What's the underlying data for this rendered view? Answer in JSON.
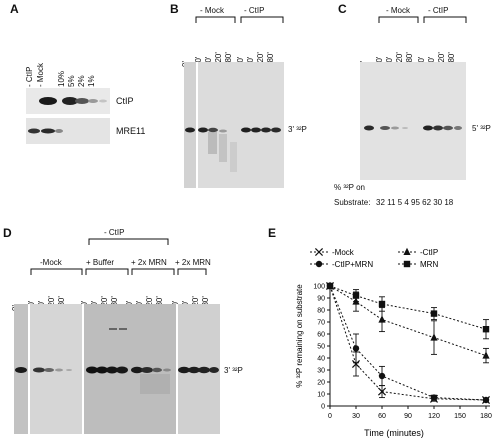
{
  "panels": {
    "A": {
      "label": "A",
      "lanes": [
        "- CtIP",
        "- Mock",
        "10%",
        "5%",
        "2%",
        "1%"
      ],
      "band_labels": [
        "CtIP",
        "MRE11"
      ]
    },
    "B": {
      "label": "B",
      "groups": [
        "- Mock",
        "- CtIP"
      ],
      "lanes": [
        "0'",
        "30'",
        "60'",
        "120'",
        "180'",
        "30'",
        "60'",
        "120'",
        "180'"
      ],
      "band_label": "3' ³²P"
    },
    "C": {
      "label": "C",
      "groups": [
        "- Mock",
        "- CtIP"
      ],
      "lanes": [
        "0'",
        "30'",
        "60'",
        "120'",
        "180'",
        "30'",
        "60'",
        "120'",
        "180'"
      ],
      "band_label": "5' ³²P",
      "substrate_header": "% ³²P on",
      "substrate_label": "Substrate:",
      "substrate_values": "32 11 5 4 95 62 30 18"
    },
    "D": {
      "label": "D",
      "top_group": "- CtIP",
      "groups": [
        "-Mock",
        "+ Buffer",
        "+ 2x MRN",
        "+ 2x MRN"
      ],
      "lanes": [
        "0'",
        "30'",
        "60'",
        "120'",
        "180'",
        "30'",
        "60'",
        "120'",
        "180'",
        "30'",
        "60'",
        "120'",
        "180'",
        "30'",
        "60'",
        "120'",
        "180'"
      ],
      "band_label": "3' ³²P"
    },
    "E": {
      "label": "E",
      "legend": [
        "-Mock",
        "-CtIP",
        "-CtIP+MRN",
        "MRN"
      ],
      "ylabel": "% ³²P remaining on substrate",
      "xlabel": "Time (minutes)"
    }
  },
  "chart_data": {
    "type": "line",
    "xlabel": "Time (minutes)",
    "ylabel": "% ³²P remaining on substrate",
    "xlim": [
      0,
      180
    ],
    "ylim": [
      0,
      100
    ],
    "xticks": [
      0,
      30,
      60,
      90,
      120,
      150,
      180
    ],
    "yticks": [
      0,
      10,
      20,
      30,
      40,
      50,
      60,
      70,
      80,
      90,
      100
    ],
    "series": [
      {
        "name": "-Mock",
        "marker": "x",
        "x": [
          0,
          30,
          60,
          120,
          180
        ],
        "y": [
          100,
          35,
          12,
          6,
          5
        ],
        "err": [
          0,
          10,
          5,
          2,
          1
        ]
      },
      {
        "name": "-CtIP",
        "marker": "triangle",
        "x": [
          0,
          30,
          60,
          120,
          180
        ],
        "y": [
          100,
          87,
          72,
          57,
          42
        ],
        "err": [
          0,
          8,
          10,
          14,
          6
        ]
      },
      {
        "name": "-CtIP+MRN",
        "marker": "circle",
        "x": [
          0,
          30,
          60,
          120,
          180
        ],
        "y": [
          100,
          48,
          25,
          7,
          5
        ],
        "err": [
          0,
          12,
          8,
          2,
          1
        ]
      },
      {
        "name": "MRN",
        "marker": "square",
        "x": [
          0,
          30,
          60,
          120,
          180
        ],
        "y": [
          100,
          92,
          85,
          77,
          64
        ],
        "err": [
          0,
          5,
          6,
          5,
          8
        ]
      }
    ]
  }
}
